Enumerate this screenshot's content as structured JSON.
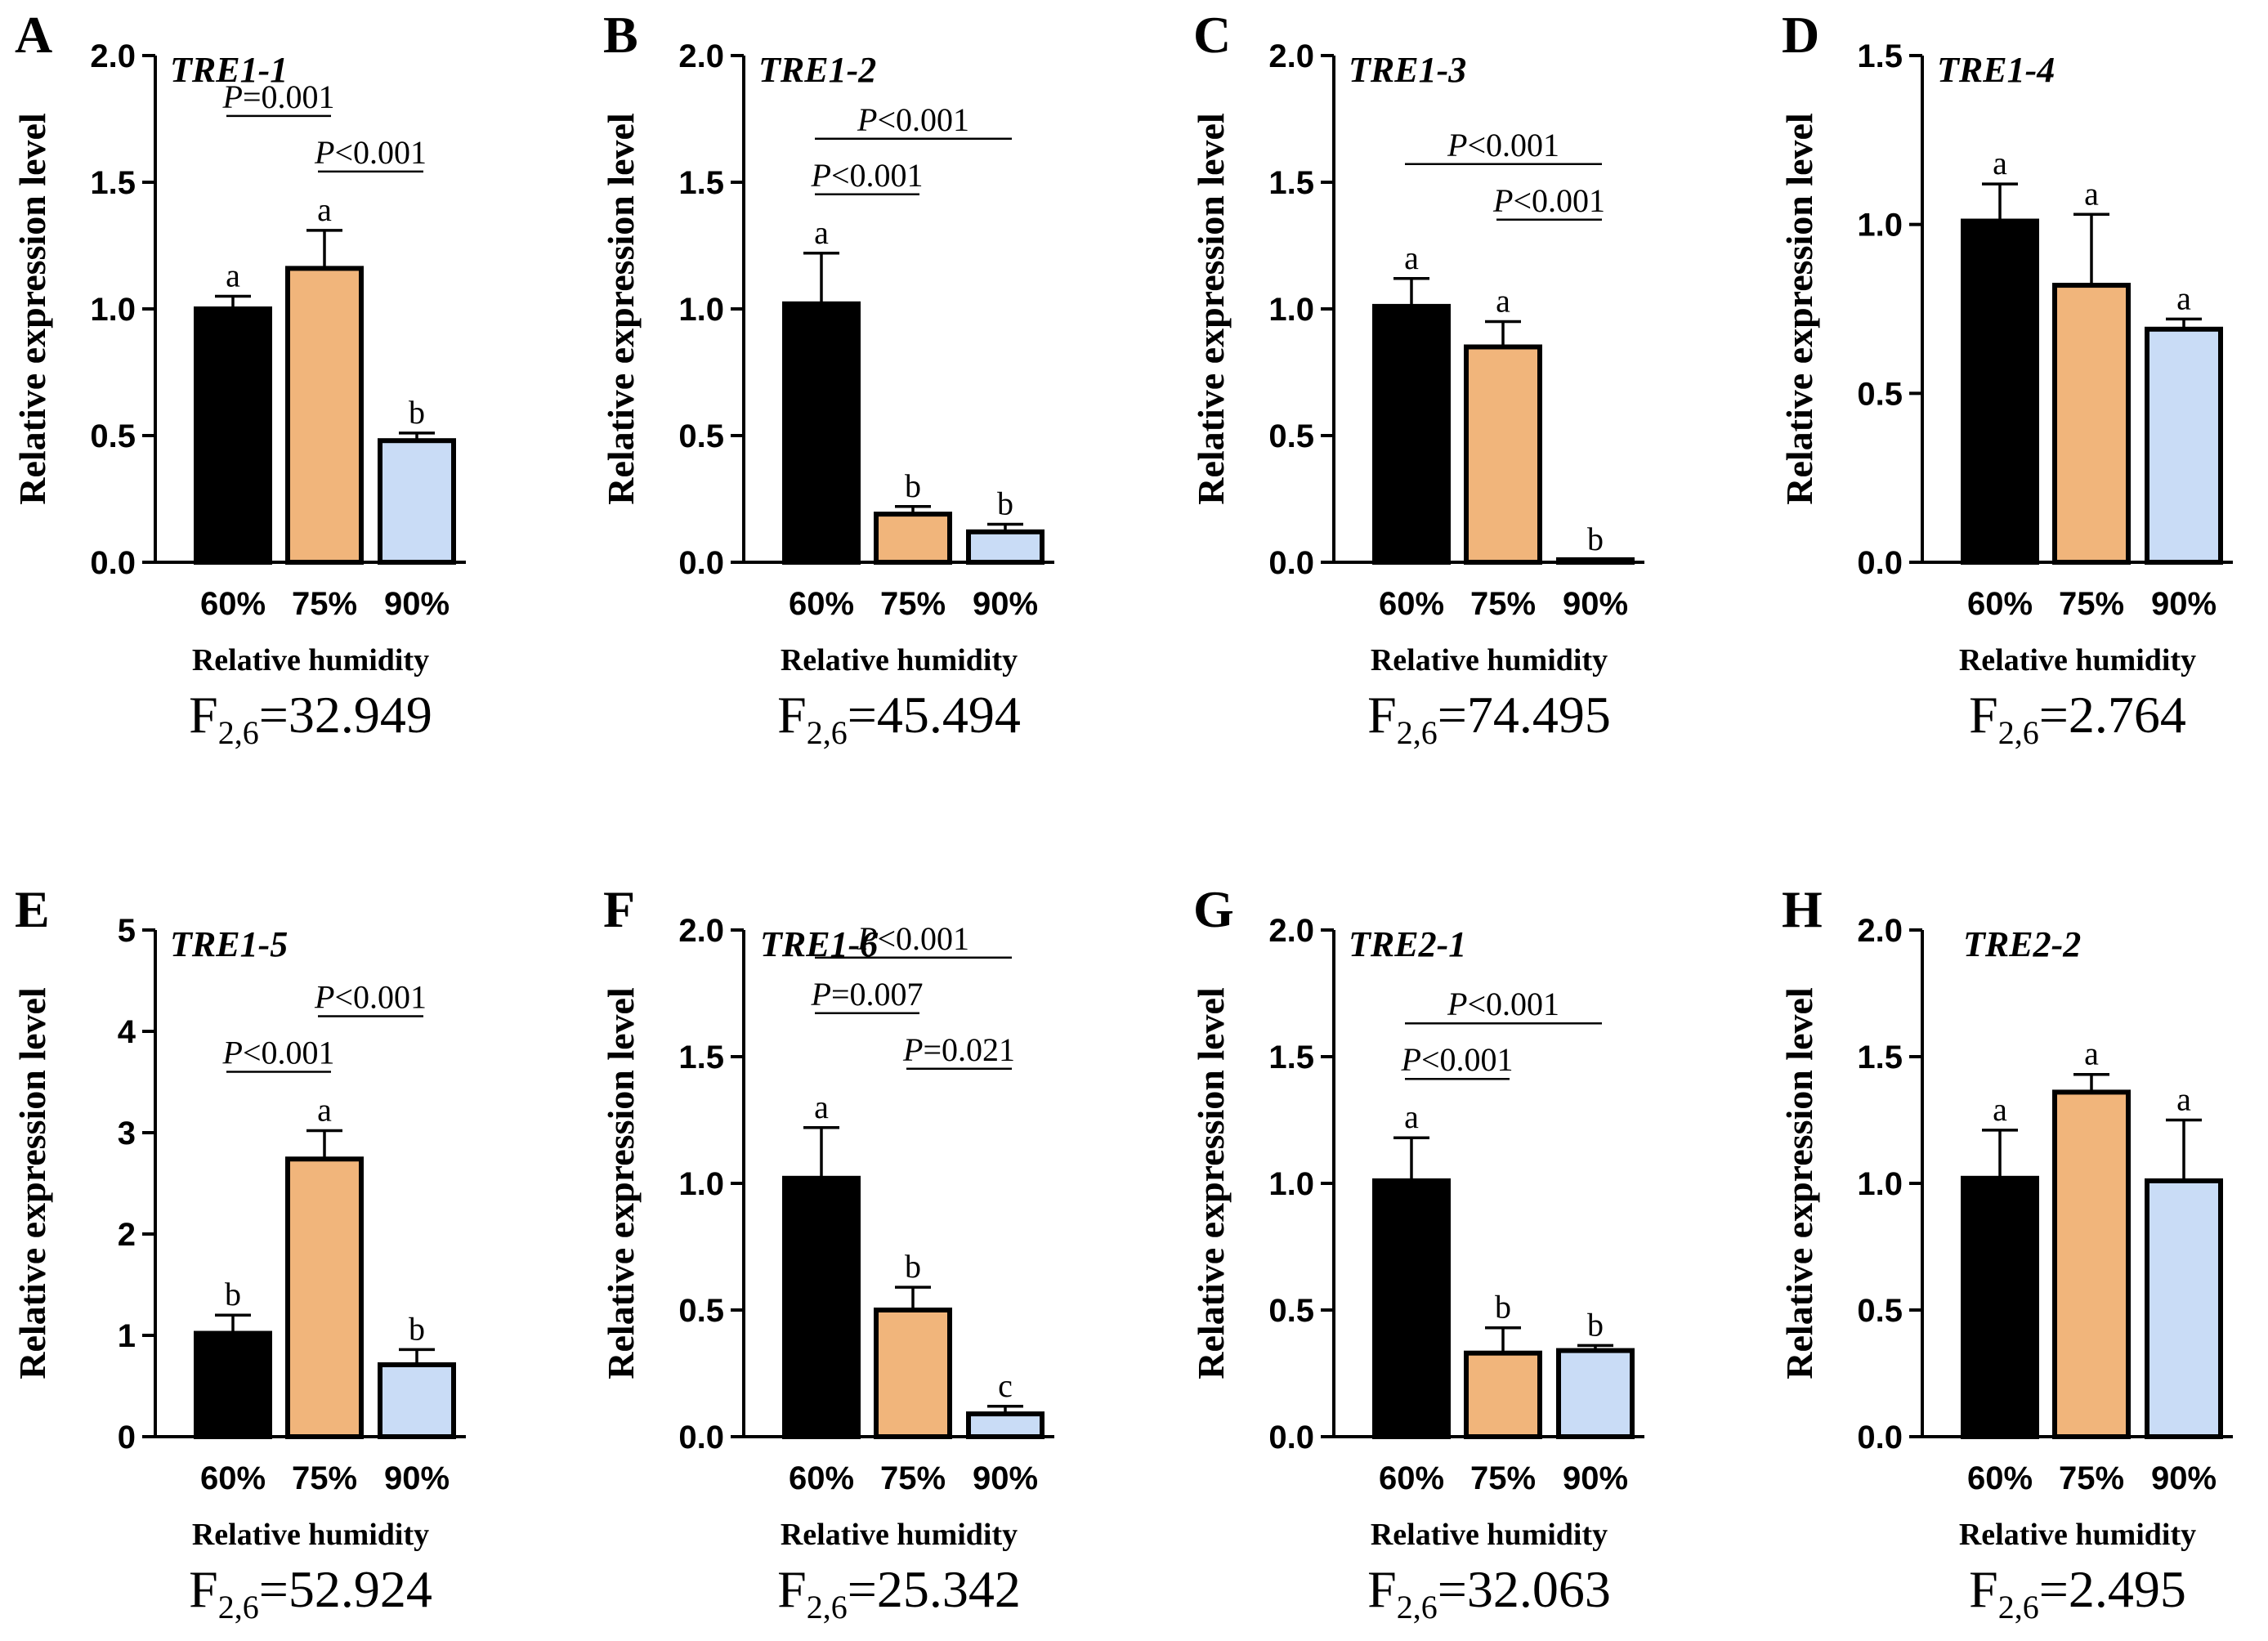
{
  "shared": {
    "ylabel": "Relative expression level",
    "xlabel": "Relative humidity",
    "categories": [
      "60%",
      "75%",
      "90%"
    ],
    "colors": [
      "#000000",
      "#f1b57b",
      "#c9dcf6"
    ],
    "f_prefix": "F",
    "f_sub": "2,6"
  },
  "chart_data": [
    {
      "type": "bar",
      "panel": "A",
      "gene": "TRE1-1",
      "categories": [
        "60%",
        "75%",
        "90%"
      ],
      "values": [
        1.0,
        1.16,
        0.48
      ],
      "errors": [
        0.05,
        0.15,
        0.03
      ],
      "letters": [
        "a",
        "a",
        "b"
      ],
      "ylim": [
        0,
        2.0
      ],
      "yticks": [
        "0.0",
        "0.5",
        "1.0",
        "1.5",
        "2.0"
      ],
      "xlabel": "Relative humidity",
      "ylabel": "Relative expression level",
      "f_value": "=32.949",
      "comparisons": [
        {
          "from": 0,
          "to": 1,
          "label": "=0.001",
          "level": 2
        },
        {
          "from": 1,
          "to": 2,
          "label": "<0.001",
          "level": 1
        }
      ]
    },
    {
      "type": "bar",
      "panel": "B",
      "gene": "TRE1-2",
      "categories": [
        "60%",
        "75%",
        "90%"
      ],
      "values": [
        1.02,
        0.19,
        0.12
      ],
      "errors": [
        0.2,
        0.03,
        0.03
      ],
      "letters": [
        "a",
        "b",
        "b"
      ],
      "ylim": [
        0,
        2.0
      ],
      "yticks": [
        "0.0",
        "0.5",
        "1.0",
        "1.5",
        "2.0"
      ],
      "xlabel": "Relative humidity",
      "ylabel": "Relative expression level",
      "f_value": "=45.494",
      "comparisons": [
        {
          "from": 0,
          "to": 1,
          "label": "<0.001",
          "level": 1
        },
        {
          "from": 0,
          "to": 2,
          "label": "<0.001",
          "level": 2
        }
      ]
    },
    {
      "type": "bar",
      "panel": "C",
      "gene": "TRE1-3",
      "categories": [
        "60%",
        "75%",
        "90%"
      ],
      "values": [
        1.01,
        0.85,
        0.01
      ],
      "errors": [
        0.11,
        0.1,
        0.0
      ],
      "letters": [
        "a",
        "a",
        "b"
      ],
      "ylim": [
        0,
        2.0
      ],
      "yticks": [
        "0.0",
        "0.5",
        "1.0",
        "1.5",
        "2.0"
      ],
      "xlabel": "Relative humidity",
      "ylabel": "Relative expression level",
      "f_value": "=74.495",
      "comparisons": [
        {
          "from": 0,
          "to": 2,
          "label": "<0.001",
          "level": 2
        },
        {
          "from": 1,
          "to": 2,
          "label": "<0.001",
          "level": 1
        }
      ]
    },
    {
      "type": "bar",
      "panel": "D",
      "gene": "TRE1-4",
      "categories": [
        "60%",
        "75%",
        "90%"
      ],
      "values": [
        1.01,
        0.82,
        0.69
      ],
      "errors": [
        0.11,
        0.21,
        0.03
      ],
      "letters": [
        "a",
        "a",
        "a"
      ],
      "ylim": [
        0,
        1.5
      ],
      "yticks": [
        "0.0",
        "0.5",
        "1.0",
        "1.5"
      ],
      "xlabel": "Relative humidity",
      "ylabel": "Relative expression level",
      "f_value": "=2.764",
      "comparisons": []
    },
    {
      "type": "bar",
      "panel": "E",
      "gene": "TRE1-5",
      "categories": [
        "60%",
        "75%",
        "90%"
      ],
      "values": [
        1.02,
        2.74,
        0.71
      ],
      "errors": [
        0.18,
        0.28,
        0.15
      ],
      "letters": [
        "b",
        "a",
        "b"
      ],
      "ylim": [
        0,
        5
      ],
      "yticks": [
        "0",
        "1",
        "2",
        "3",
        "4",
        "5"
      ],
      "xlabel": "Relative humidity",
      "ylabel": "Relative expression level",
      "f_value": "=52.924",
      "comparisons": [
        {
          "from": 0,
          "to": 1,
          "label": "<0.001",
          "level": 1
        },
        {
          "from": 1,
          "to": 2,
          "label": "<0.001",
          "level": 2
        }
      ]
    },
    {
      "type": "bar",
      "panel": "F",
      "gene": "TRE1-6",
      "categories": [
        "60%",
        "75%",
        "90%"
      ],
      "values": [
        1.02,
        0.5,
        0.09
      ],
      "errors": [
        0.2,
        0.09,
        0.03
      ],
      "letters": [
        "a",
        "b",
        "c"
      ],
      "ylim": [
        0,
        2.0
      ],
      "yticks": [
        "0.0",
        "0.5",
        "1.0",
        "1.5",
        "2.0"
      ],
      "xlabel": "Relative humidity",
      "ylabel": "Relative expression level",
      "f_value": "=25.342",
      "comparisons": [
        {
          "from": 0,
          "to": 1,
          "label": "=0.007",
          "level": 2
        },
        {
          "from": 0,
          "to": 2,
          "label": "<0.001",
          "level": 3
        },
        {
          "from": 1,
          "to": 2,
          "label": "=0.021",
          "level": 1
        }
      ]
    },
    {
      "type": "bar",
      "panel": "G",
      "gene": "TRE2-1",
      "categories": [
        "60%",
        "75%",
        "90%"
      ],
      "values": [
        1.01,
        0.33,
        0.34
      ],
      "errors": [
        0.17,
        0.1,
        0.02
      ],
      "letters": [
        "a",
        "b",
        "b"
      ],
      "ylim": [
        0,
        2.0
      ],
      "yticks": [
        "0.0",
        "0.5",
        "1.0",
        "1.5",
        "2.0"
      ],
      "xlabel": "Relative humidity",
      "ylabel": "Relative expression level",
      "f_value": "=32.063",
      "comparisons": [
        {
          "from": 0,
          "to": 1,
          "label": "<0.001",
          "level": 1
        },
        {
          "from": 0,
          "to": 2,
          "label": "<0.001",
          "level": 2
        }
      ]
    },
    {
      "type": "bar",
      "panel": "H",
      "gene": "TRE2-2",
      "categories": [
        "60%",
        "75%",
        "90%"
      ],
      "values": [
        1.02,
        1.36,
        1.01
      ],
      "errors": [
        0.19,
        0.07,
        0.24
      ],
      "letters": [
        "a",
        "a",
        "a"
      ],
      "ylim": [
        0,
        2.0
      ],
      "yticks": [
        "0.0",
        "0.5",
        "1.0",
        "1.5",
        "2.0"
      ],
      "xlabel": "Relative humidity",
      "ylabel": "Relative expression level",
      "f_value": "=2.495",
      "comparisons": []
    }
  ]
}
